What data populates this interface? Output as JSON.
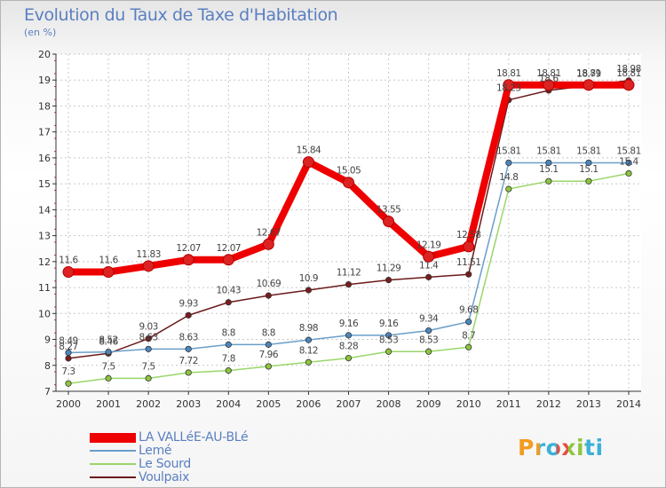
{
  "title": "Evolution du Taux de Taxe d'Habitation",
  "subtitle": "(en %)",
  "logo_text": "Proxiti",
  "chart_data": {
    "type": "line",
    "title": "Evolution du Taux de Taxe d'Habitation",
    "subtitle": "(en %)",
    "xlabel": "",
    "ylabel": "",
    "ylim": [
      7,
      20
    ],
    "grid": true,
    "legend_position": "bottom-left",
    "x": [
      "2000",
      "2001",
      "2002",
      "2003",
      "2004",
      "2005",
      "2006",
      "2007",
      "2008",
      "2009",
      "2010",
      "2011",
      "2012",
      "2013",
      "2014"
    ],
    "y_ticks": [
      "7",
      "8",
      "9",
      "10",
      "11",
      "12",
      "13",
      "14",
      "15",
      "16",
      "17",
      "18",
      "19",
      "20"
    ],
    "series": [
      {
        "name": "Voulpaix",
        "color": "#6b1a1a",
        "point_color": "#7a1c1c",
        "values": [
          8.27,
          8.46,
          9.03,
          9.93,
          10.43,
          10.69,
          10.9,
          11.12,
          11.29,
          11.4,
          11.51,
          18.23,
          18.6,
          18.79,
          18.98
        ],
        "labels": [
          "8.27",
          "8.46",
          "9.03",
          "9.93",
          "10.43",
          "10.69",
          "10.9",
          "11.12",
          "11.29",
          "11.4",
          "11.51",
          "18.23",
          "18.6",
          "18.79",
          "18.98"
        ]
      },
      {
        "name": "Le Sourd",
        "color": "#9ad66a",
        "point_color": "#8cc63e",
        "values": [
          7.3,
          7.5,
          7.5,
          7.72,
          7.8,
          7.96,
          8.12,
          8.28,
          8.53,
          8.53,
          8.7,
          14.8,
          15.1,
          15.1,
          15.4
        ],
        "labels": [
          "7.3",
          "7.5",
          "7.5",
          "7.72",
          "7.8",
          "7.96",
          "8.12",
          "8.28",
          "8.53",
          "8.53",
          "8.7",
          "14.8",
          "15.1",
          "15.1",
          "15.4"
        ]
      },
      {
        "name": "Lemé",
        "color": "#6a9ec9",
        "point_color": "#4a86c0",
        "values": [
          8.49,
          8.52,
          8.63,
          8.63,
          8.8,
          8.8,
          8.98,
          9.16,
          9.16,
          9.34,
          9.68,
          15.81,
          15.81,
          15.81,
          15.81
        ],
        "labels": [
          "8.49",
          "8.52",
          "8.63",
          "8.63",
          "8.8",
          "8.8",
          "8.98",
          "9.16",
          "9.16",
          "9.34",
          "9.68",
          "15.81",
          "15.81",
          "15.81",
          "15.81"
        ]
      },
      {
        "name": "LA VALLéE-AU-BLé",
        "color": "#ee0000",
        "point_color": "#dd2222",
        "values": [
          11.6,
          11.6,
          11.83,
          12.07,
          12.07,
          12.67,
          15.84,
          15.05,
          13.55,
          12.19,
          12.58,
          18.81,
          18.81,
          18.81,
          18.81
        ],
        "labels": [
          "11.6",
          "11.6",
          "11.83",
          "12.07",
          "12.07",
          "12.67",
          "15.84",
          "15.05",
          "13.55",
          "12.19",
          "12.58",
          "18.81",
          "18.81",
          "18.81",
          "18.81"
        ]
      }
    ],
    "legend": [
      {
        "name": "LA VALLéE-AU-BLé",
        "color": "#ee0000"
      },
      {
        "name": "Lemé",
        "color": "#6a9ec9"
      },
      {
        "name": "Le Sourd",
        "color": "#9ad66a"
      },
      {
        "name": "Voulpaix",
        "color": "#6b1a1a"
      }
    ]
  }
}
